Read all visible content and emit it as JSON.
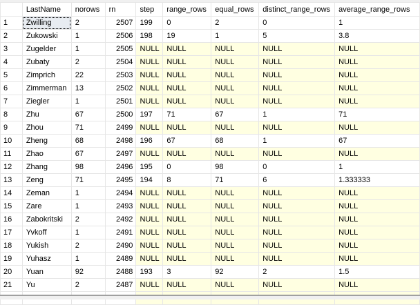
{
  "columns": [
    "",
    "LastName",
    "norows",
    "rn",
    "step",
    "range_rows",
    "equal_rows",
    "distinct_range_rows",
    "average_range_rows"
  ],
  "rows": [
    [
      "1",
      "Zwilling",
      "2",
      "2507",
      "199",
      "0",
      "2",
      "0",
      "1"
    ],
    [
      "2",
      "Zukowski",
      "1",
      "2506",
      "198",
      "19",
      "1",
      "5",
      "3.8"
    ],
    [
      "3",
      "Zugelder",
      "1",
      "2505",
      "NULL",
      "NULL",
      "NULL",
      "NULL",
      "NULL"
    ],
    [
      "4",
      "Zubaty",
      "2",
      "2504",
      "NULL",
      "NULL",
      "NULL",
      "NULL",
      "NULL"
    ],
    [
      "5",
      "Zimprich",
      "22",
      "2503",
      "NULL",
      "NULL",
      "NULL",
      "NULL",
      "NULL"
    ],
    [
      "6",
      "Zimmerman",
      "13",
      "2502",
      "NULL",
      "NULL",
      "NULL",
      "NULL",
      "NULL"
    ],
    [
      "7",
      "Ziegler",
      "1",
      "2501",
      "NULL",
      "NULL",
      "NULL",
      "NULL",
      "NULL"
    ],
    [
      "8",
      "Zhu",
      "67",
      "2500",
      "197",
      "71",
      "67",
      "1",
      "71"
    ],
    [
      "9",
      "Zhou",
      "71",
      "2499",
      "NULL",
      "NULL",
      "NULL",
      "NULL",
      "NULL"
    ],
    [
      "10",
      "Zheng",
      "68",
      "2498",
      "196",
      "67",
      "68",
      "1",
      "67"
    ],
    [
      "11",
      "Zhao",
      "67",
      "2497",
      "NULL",
      "NULL",
      "NULL",
      "NULL",
      "NULL"
    ],
    [
      "12",
      "Zhang",
      "98",
      "2496",
      "195",
      "0",
      "98",
      "0",
      "1"
    ],
    [
      "13",
      "Zeng",
      "71",
      "2495",
      "194",
      "8",
      "71",
      "6",
      "1.333333"
    ],
    [
      "14",
      "Zeman",
      "1",
      "2494",
      "NULL",
      "NULL",
      "NULL",
      "NULL",
      "NULL"
    ],
    [
      "15",
      "Zare",
      "1",
      "2493",
      "NULL",
      "NULL",
      "NULL",
      "NULL",
      "NULL"
    ],
    [
      "16",
      "Zabokritski",
      "2",
      "2492",
      "NULL",
      "NULL",
      "NULL",
      "NULL",
      "NULL"
    ],
    [
      "17",
      "Yvkoff",
      "1",
      "2491",
      "NULL",
      "NULL",
      "NULL",
      "NULL",
      "NULL"
    ],
    [
      "18",
      "Yukish",
      "2",
      "2490",
      "NULL",
      "NULL",
      "NULL",
      "NULL",
      "NULL"
    ],
    [
      "19",
      "Yuhasz",
      "1",
      "2489",
      "NULL",
      "NULL",
      "NULL",
      "NULL",
      "NULL"
    ],
    [
      "20",
      "Yuan",
      "92",
      "2488",
      "193",
      "3",
      "92",
      "2",
      "1.5"
    ],
    [
      "21",
      "Yu",
      "2",
      "2487",
      "NULL",
      "NULL",
      "NULL",
      "NULL",
      "NULL"
    ]
  ],
  "null_cell_color": "#ffffe1"
}
